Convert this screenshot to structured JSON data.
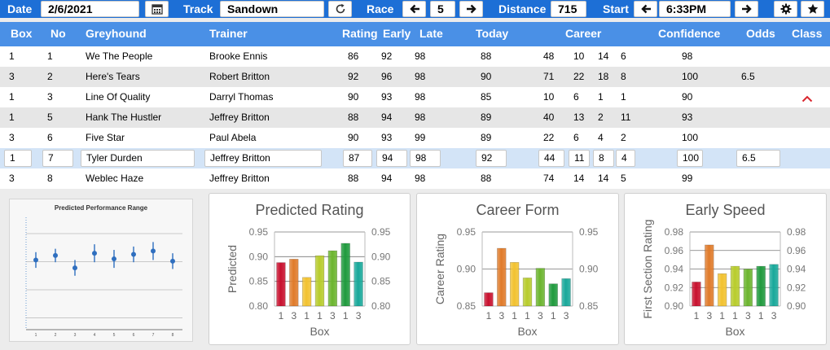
{
  "toolbar": {
    "date_label": "Date",
    "date_value": "2/6/2021",
    "calendar_icon": "calendar-icon",
    "track_label": "Track",
    "track_value": "Sandown",
    "refresh_icon": "refresh-icon",
    "race_label": "Race",
    "race_value": "5",
    "distance_label": "Distance",
    "distance_value": "715",
    "start_label": "Start",
    "start_value": "6:33PM",
    "settings_icon": "gear-icon",
    "favorite_icon": "star-icon"
  },
  "columns": {
    "box": "Box",
    "no": "No",
    "greyhound": "Greyhound",
    "trainer": "Trainer",
    "rating": "Rating",
    "early": "Early",
    "late": "Late",
    "today": "Today",
    "career": "Career",
    "confidence": "Confidence",
    "odds": "Odds",
    "class": "Class"
  },
  "rows": [
    {
      "box": "1",
      "no": "1",
      "greyhound": "We The People",
      "trainer": "Brooke Ennis",
      "rating": "86",
      "early": "92",
      "late": "98",
      "today": "88",
      "c1": "48",
      "c2": "10",
      "c3": "14",
      "c4": "6",
      "confidence": "98",
      "odds": ""
    },
    {
      "box": "3",
      "no": "2",
      "greyhound": "Here's Tears",
      "trainer": "Robert Britton",
      "rating": "92",
      "early": "96",
      "late": "98",
      "today": "90",
      "c1": "71",
      "c2": "22",
      "c3": "18",
      "c4": "8",
      "confidence": "100",
      "odds": "6.5"
    },
    {
      "box": "1",
      "no": "3",
      "greyhound": "Line Of Quality",
      "trainer": "Darryl Thomas",
      "rating": "90",
      "early": "93",
      "late": "98",
      "today": "85",
      "c1": "10",
      "c2": "6",
      "c3": "1",
      "c4": "1",
      "confidence": "90",
      "odds": ""
    },
    {
      "box": "1",
      "no": "5",
      "greyhound": "Hank The Hustler",
      "trainer": "Jeffrey Britton",
      "rating": "88",
      "early": "94",
      "late": "98",
      "today": "89",
      "c1": "40",
      "c2": "13",
      "c3": "2",
      "c4": "11",
      "confidence": "93",
      "odds": ""
    },
    {
      "box": "3",
      "no": "6",
      "greyhound": "Five Star",
      "trainer": "Paul Abela",
      "rating": "90",
      "early": "93",
      "late": "99",
      "today": "89",
      "c1": "22",
      "c2": "6",
      "c3": "4",
      "c4": "2",
      "confidence": "100",
      "odds": ""
    },
    {
      "box": "1",
      "no": "7",
      "greyhound": "Tyler Durden",
      "trainer": "Jeffrey Britton",
      "rating": "87",
      "early": "94",
      "late": "98",
      "today": "92",
      "c1": "44",
      "c2": "11",
      "c3": "8",
      "c4": "4",
      "confidence": "100",
      "odds": "6.5"
    },
    {
      "box": "3",
      "no": "8",
      "greyhound": "Weblec Haze",
      "trainer": "Jeffrey Britton",
      "rating": "88",
      "early": "94",
      "late": "98",
      "today": "88",
      "c1": "74",
      "c2": "14",
      "c3": "14",
      "c4": "5",
      "confidence": "99",
      "odds": ""
    }
  ],
  "selected_row": 5,
  "class_indicator_icon": "chevron-up-icon",
  "chart_data": [
    {
      "type": "scatter",
      "title": "Predicted Performance Range",
      "categories": [
        "1",
        "2",
        "3",
        "4",
        "5",
        "6",
        "7",
        "8"
      ],
      "values": [
        0.62,
        0.66,
        0.55,
        0.68,
        0.63,
        0.67,
        0.7,
        0.61
      ],
      "error": [
        0.07,
        0.06,
        0.07,
        0.08,
        0.08,
        0.07,
        0.08,
        0.07
      ],
      "ylim": [
        0,
        1
      ]
    },
    {
      "type": "bar",
      "title": "Predicted Rating",
      "xlabel": "Box",
      "ylabel": "Predicted",
      "categories": [
        "1",
        "3",
        "1",
        "1",
        "3",
        "1",
        "3"
      ],
      "values": [
        0.888,
        0.895,
        0.858,
        0.902,
        0.912,
        0.927,
        0.889
      ],
      "ylim": [
        0.8,
        0.95
      ],
      "yticks": [
        "0.95",
        "0.90",
        "0.85",
        "0.80"
      ],
      "colors": [
        "#c8102e",
        "#e07b2a",
        "#f2c230",
        "#b8cc2c",
        "#6cb52f",
        "#1f9a3d",
        "#18a89a"
      ]
    },
    {
      "type": "bar",
      "title": "Career Form",
      "xlabel": "Box",
      "ylabel": "Career Rating",
      "categories": [
        "1",
        "3",
        "1",
        "1",
        "3",
        "1",
        "3"
      ],
      "values": [
        0.868,
        0.928,
        0.909,
        0.888,
        0.901,
        0.88,
        0.887
      ],
      "ylim": [
        0.85,
        0.95
      ],
      "yticks": [
        "0.95",
        "0.90",
        "0.85"
      ],
      "colors": [
        "#c8102e",
        "#e07b2a",
        "#f2c230",
        "#b8cc2c",
        "#6cb52f",
        "#1f9a3d",
        "#18a89a"
      ]
    },
    {
      "type": "bar",
      "title": "Early Speed",
      "xlabel": "Box",
      "ylabel": "First Section Rating",
      "categories": [
        "1",
        "3",
        "1",
        "1",
        "3",
        "1",
        "3"
      ],
      "values": [
        0.926,
        0.966,
        0.935,
        0.943,
        0.94,
        0.943,
        0.945
      ],
      "ylim": [
        0.9,
        0.98
      ],
      "yticks": [
        "0.98",
        "0.96",
        "0.94",
        "0.92",
        "0.90"
      ],
      "colors": [
        "#c8102e",
        "#e07b2a",
        "#f2c230",
        "#b8cc2c",
        "#6cb52f",
        "#1f9a3d",
        "#18a89a"
      ]
    }
  ]
}
